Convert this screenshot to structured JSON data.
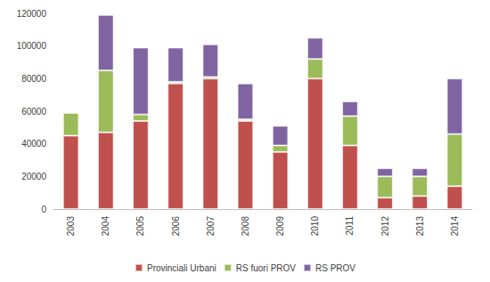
{
  "chart_data": {
    "type": "bar",
    "stacked": true,
    "grid": false,
    "legend": "bottom",
    "categories": [
      "2003",
      "2004",
      "2005",
      "2006",
      "2007",
      "2008",
      "2009",
      "2010",
      "2011",
      "2012",
      "2013",
      "2014"
    ],
    "series": [
      {
        "name": "Provinciali Urbani",
        "color": "#c0504d",
        "values": [
          45000,
          47000,
          54000,
          77000,
          80000,
          54000,
          35000,
          80000,
          39000,
          7000,
          8000,
          14000
        ]
      },
      {
        "name": "RS fuori PROV",
        "color": "#9bbb59",
        "values": [
          14000,
          38000,
          4000,
          1000,
          1000,
          1000,
          4000,
          12000,
          18000,
          13000,
          12000,
          32000
        ]
      },
      {
        "name": "RS PROV",
        "color": "#8064a2",
        "values": [
          0,
          34000,
          41000,
          21000,
          20000,
          22000,
          12000,
          13000,
          9000,
          5000,
          5000,
          34000
        ]
      }
    ],
    "ylim": [
      0,
      120000
    ],
    "yticks": [
      0,
      20000,
      40000,
      60000,
      80000,
      100000,
      120000
    ]
  }
}
